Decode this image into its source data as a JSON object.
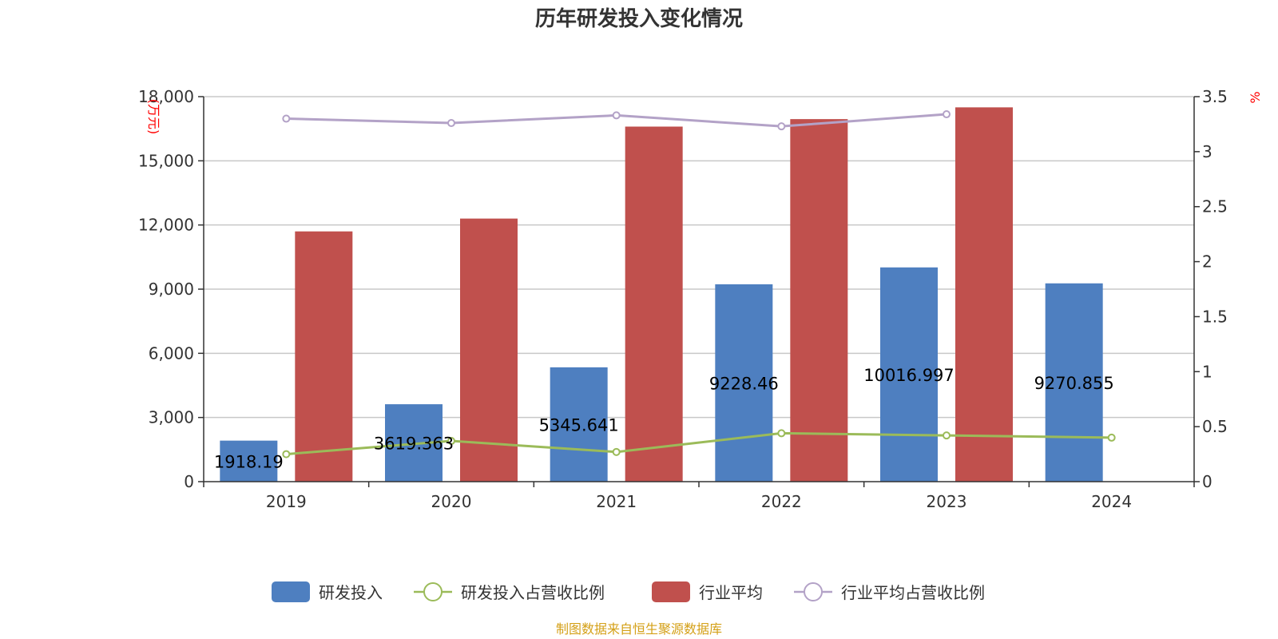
{
  "chart_data": {
    "type": "bar",
    "title": "历年研发投入变化情况",
    "categories": [
      "2019",
      "2020",
      "2021",
      "2022",
      "2023",
      "2024"
    ],
    "y_left": {
      "unit": "(万元)",
      "min": 0,
      "max": 18000,
      "ticks": [
        0,
        3000,
        6000,
        9000,
        12000,
        15000,
        18000
      ],
      "tick_labels": [
        "0",
        "3,000",
        "6,000",
        "9,000",
        "12,000",
        "15,000",
        "18,000"
      ]
    },
    "y_right": {
      "unit": "%",
      "min": 0,
      "max": 3.5,
      "ticks": [
        0,
        0.5,
        1,
        1.5,
        2,
        2.5,
        3,
        3.5
      ],
      "tick_labels": [
        "0",
        "0.5",
        "1",
        "1.5",
        "2",
        "2.5",
        "3",
        "3.5"
      ]
    },
    "grid": true,
    "legend_position": "bottom",
    "series": [
      {
        "name": "研发投入",
        "kind": "bar",
        "axis": "left",
        "color": "#4e7fc0",
        "values": [
          1918.19,
          3619.363,
          5345.641,
          9228.46,
          10016.997,
          9270.855
        ],
        "labels": [
          "1918.19",
          "3619.363",
          "5345.641",
          "9228.46",
          "10016.997",
          "9270.855"
        ]
      },
      {
        "name": "研发投入占营收比例",
        "kind": "line",
        "axis": "right",
        "color": "#9bbb59",
        "values": [
          0.25,
          0.37,
          0.27,
          0.44,
          0.42,
          0.4
        ]
      },
      {
        "name": "行业平均",
        "kind": "bar",
        "axis": "left",
        "color": "#c0504d",
        "values": [
          11700,
          12300,
          16600,
          16950,
          17500,
          null
        ]
      },
      {
        "name": "行业平均占营收比例",
        "kind": "line",
        "axis": "right",
        "color": "#b3a2c7",
        "values": [
          3.3,
          3.26,
          3.33,
          3.23,
          3.34,
          null
        ]
      }
    ],
    "source": "制图数据来自恒生聚源数据库"
  }
}
